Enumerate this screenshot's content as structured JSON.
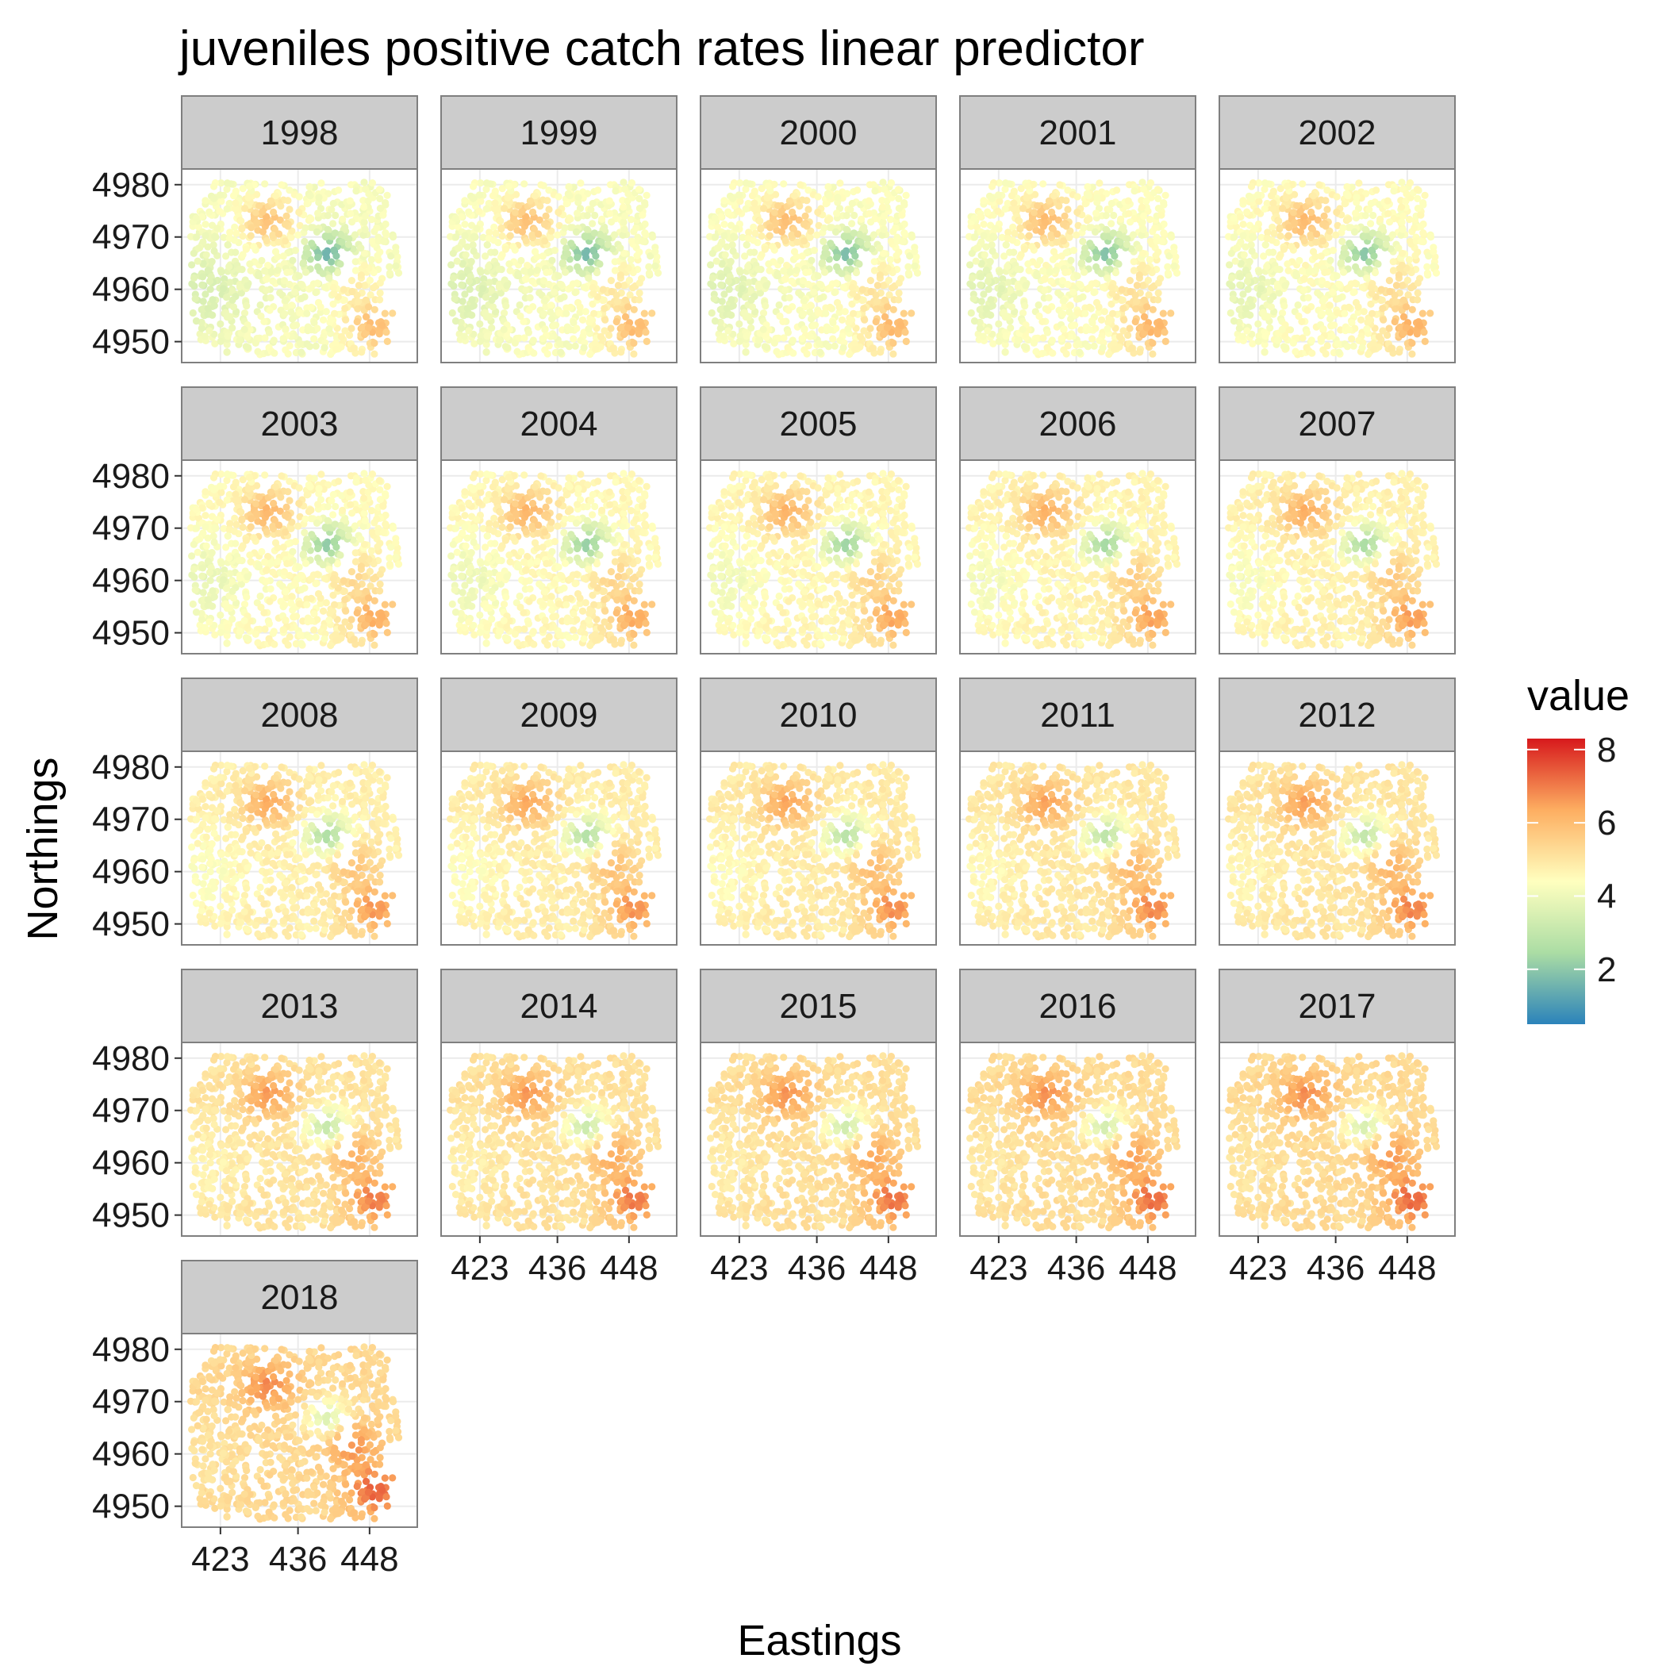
{
  "chart_data": {
    "type": "scatter",
    "title": "juveniles positive catch rates linear predictor",
    "xlabel": "Eastings",
    "ylabel": "Northings",
    "facet_variable": "year",
    "panels": [
      "1998",
      "1999",
      "2000",
      "2001",
      "2002",
      "2003",
      "2004",
      "2005",
      "2006",
      "2007",
      "2008",
      "2009",
      "2010",
      "2011",
      "2012",
      "2013",
      "2014",
      "2015",
      "2016",
      "2017",
      "2018"
    ],
    "panel_grid": {
      "columns": 5,
      "rows": 5
    },
    "x_ticks": [
      423,
      436,
      448
    ],
    "y_ticks": [
      4950,
      4960,
      4970,
      4980
    ],
    "xlim": [
      416.5,
      456
    ],
    "ylim": [
      4946,
      4983
    ],
    "legend": {
      "title": "value",
      "ticks": [
        2,
        4,
        6,
        8
      ],
      "range": [
        0.5,
        8.3
      ],
      "palette": [
        "#2b83ba",
        "#abdda4",
        "#ffffbf",
        "#fdae61",
        "#d7191c"
      ],
      "position": "right"
    },
    "panel_background": "#ffffff",
    "strip_background": "#cccccc",
    "grid": true,
    "regions": [
      {
        "id": "base",
        "x": 436,
        "y": 4962,
        "value_1998": 4.2,
        "value_2018": 5.3
      },
      {
        "id": "nw-hotspot",
        "x": 431,
        "y": 4973,
        "value_1998": 5.8,
        "value_2018": 6.8
      },
      {
        "id": "center-low",
        "x": 441,
        "y": 4967,
        "value_1998": 1.5,
        "value_2018": 3.5
      },
      {
        "id": "se-hotspot",
        "x": 449,
        "y": 4953,
        "value_1998": 6.0,
        "value_2018": 7.4
      },
      {
        "id": "east-mid",
        "x": 445,
        "y": 4962,
        "value_1998": 4.8,
        "value_2018": 6.7
      },
      {
        "id": "west-low",
        "x": 420,
        "y": 4960,
        "value_1998": 3.5,
        "value_2018": 5.0
      }
    ]
  }
}
